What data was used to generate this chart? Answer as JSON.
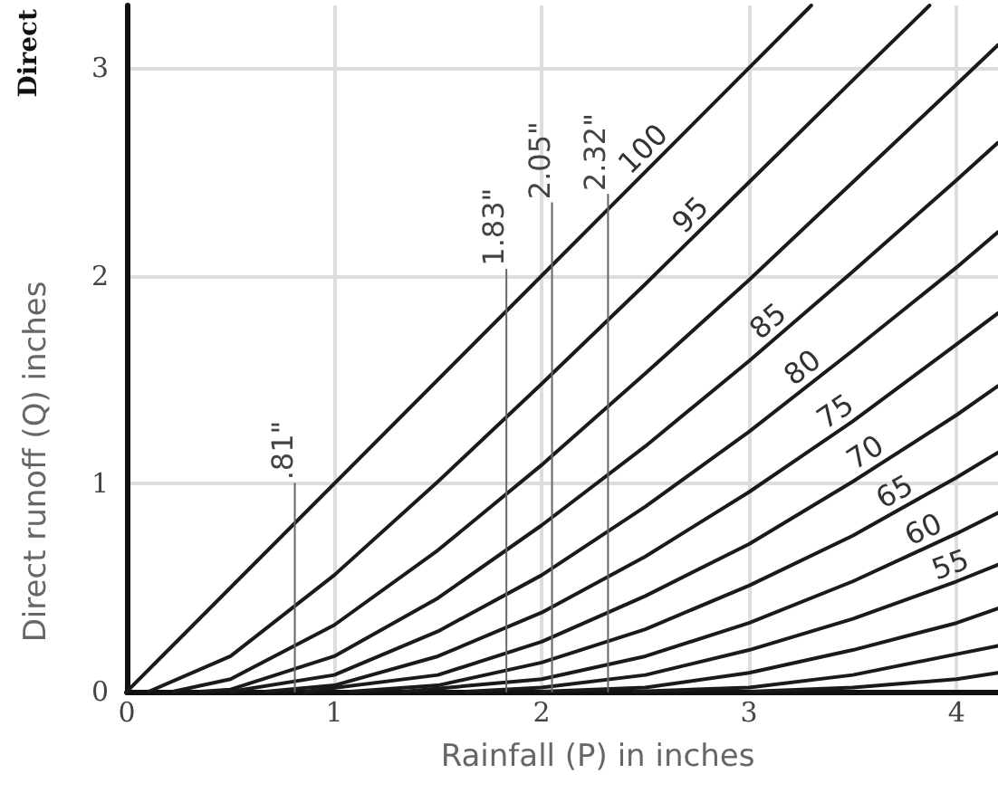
{
  "chart_data": {
    "type": "line",
    "title": "Direct",
    "xlabel": "Rainfall (P) in inches",
    "ylabel": "Direct runoff (Q) inches",
    "xlim": [
      0,
      4.2
    ],
    "ylim": [
      0,
      3.3
    ],
    "xticks": [
      0,
      1,
      2,
      3,
      4
    ],
    "yticks": [
      0,
      1,
      2,
      3
    ],
    "grid": true,
    "series": [
      {
        "name": "100",
        "color": "#1a1a1a",
        "x": [
          0,
          3.3
        ],
        "values": [
          0,
          3.3
        ]
      },
      {
        "name": "95",
        "color": "#1a1a1a",
        "x": [
          0.105,
          0.5,
          1,
          1.5,
          2,
          2.5,
          3,
          3.5,
          3.87
        ],
        "values": [
          0,
          0.17,
          0.56,
          1.01,
          1.48,
          1.96,
          2.45,
          2.94,
          3.3
        ]
      },
      {
        "color": "#1a1a1a",
        "x": [
          0.222,
          0.5,
          1,
          1.5,
          2,
          2.5,
          3,
          3.5,
          4,
          4.2
        ],
        "values": [
          0,
          0.06,
          0.32,
          0.68,
          1.09,
          1.53,
          1.98,
          2.45,
          2.92,
          3.11
        ]
      },
      {
        "name": "85",
        "color": "#1a1a1a",
        "x": [
          0.353,
          0.5,
          1,
          1.5,
          2,
          2.5,
          3,
          3.5,
          4,
          4.2
        ],
        "values": [
          0,
          0.01,
          0.17,
          0.45,
          0.8,
          1.18,
          1.59,
          2.02,
          2.46,
          2.64
        ]
      },
      {
        "name": "80",
        "color": "#1a1a1a",
        "x": [
          0.5,
          1,
          1.5,
          2,
          2.5,
          3,
          3.5,
          4,
          4.2
        ],
        "values": [
          0,
          0.08,
          0.29,
          0.56,
          0.89,
          1.25,
          1.64,
          2.04,
          2.21
        ]
      },
      {
        "name": "75",
        "color": "#1a1a1a",
        "x": [
          0.667,
          1,
          1.5,
          2,
          2.5,
          3,
          3.5,
          4,
          4.2
        ],
        "values": [
          0,
          0.03,
          0.17,
          0.38,
          0.65,
          0.96,
          1.3,
          1.67,
          1.82
        ]
      },
      {
        "name": "70",
        "color": "#1a1a1a",
        "x": [
          0.857,
          1.5,
          2,
          2.5,
          3,
          3.5,
          4,
          4.2
        ],
        "values": [
          0,
          0.08,
          0.24,
          0.46,
          0.71,
          1.01,
          1.33,
          1.47
        ]
      },
      {
        "name": "65",
        "color": "#1a1a1a",
        "x": [
          1.077,
          1.5,
          2,
          2.5,
          3,
          3.5,
          4,
          4.2
        ],
        "values": [
          0,
          0.03,
          0.14,
          0.3,
          0.51,
          0.75,
          1.03,
          1.15
        ]
      },
      {
        "name": "60",
        "color": "#1a1a1a",
        "x": [
          1.333,
          2,
          2.5,
          3,
          3.5,
          4,
          4.2
        ],
        "values": [
          0,
          0.06,
          0.17,
          0.33,
          0.53,
          0.76,
          0.86
        ]
      },
      {
        "name": "55",
        "color": "#1a1a1a",
        "x": [
          1.636,
          2,
          2.5,
          3,
          3.5,
          4,
          4.2
        ],
        "values": [
          0,
          0.02,
          0.08,
          0.2,
          0.35,
          0.53,
          0.61
        ]
      },
      {
        "color": "#1a1a1a",
        "x": [
          2,
          2.5,
          3,
          3.5,
          4,
          4.2
        ],
        "values": [
          0,
          0.02,
          0.09,
          0.2,
          0.33,
          0.4
        ]
      },
      {
        "color": "#1a1a1a",
        "x": [
          2.444,
          3,
          3.5,
          4,
          4.2
        ],
        "values": [
          0,
          0.02,
          0.08,
          0.18,
          0.22
        ]
      },
      {
        "color": "#1a1a1a",
        "x": [
          3,
          3.5,
          4,
          4.2
        ],
        "values": [
          0,
          0.02,
          0.06,
          0.09
        ]
      },
      {
        "color": "#666666",
        "x": [
          0.81,
          0.81
        ],
        "values": [
          0,
          1.0
        ]
      },
      {
        "color": "#666666",
        "x": [
          1.83,
          1.83
        ],
        "values": [
          0,
          2.03
        ]
      },
      {
        "color": "#666666",
        "x": [
          2.05,
          2.05
        ],
        "values": [
          0,
          2.35
        ]
      },
      {
        "color": "#666666",
        "x": [
          2.32,
          2.32
        ],
        "values": [
          0,
          2.39
        ]
      }
    ],
    "annotations": [
      {
        "text": ".81\"",
        "x": 0.81,
        "y": 1.0
      },
      {
        "text": "1.83\"",
        "x": 1.83,
        "y": 2.03
      },
      {
        "text": "2.05\"",
        "x": 2.05,
        "y": 2.35
      },
      {
        "text": "2.32\"",
        "x": 2.32,
        "y": 2.39
      }
    ]
  }
}
